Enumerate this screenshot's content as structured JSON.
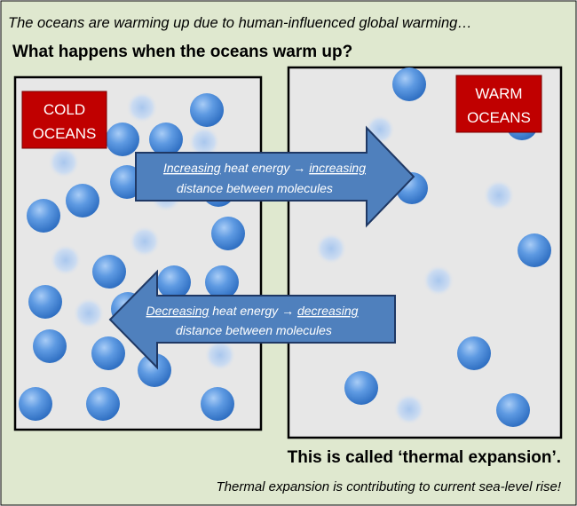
{
  "header": {
    "intro": "The oceans are warming up due to human-influenced global warming…",
    "question": "What happens when the oceans warm up?"
  },
  "cold_panel": {
    "label_line1": "COLD",
    "label_line2": "OCEANS"
  },
  "warm_panel": {
    "label_line1": "WARM",
    "label_line2": "OCEANS"
  },
  "arrow_right": {
    "word1": "Increasing",
    "mid1": " heat energy → ",
    "word2": "increasing",
    "line2": "distance between molecules"
  },
  "arrow_left": {
    "word1": "Decreasing",
    "mid1": " heat energy → ",
    "word2": "decreasing",
    "line2": "distance between molecules"
  },
  "footer": {
    "conclusion": "This is called ‘thermal expansion’.",
    "note": "Thermal expansion is contributing  to current sea-level rise!"
  },
  "colors": {
    "background": "#dfe8cf",
    "panel": "#e7e7e7",
    "molecule": "#4f8fde",
    "label_box": "#c00000",
    "arrow": "#4f80bd",
    "arrow_border": "#1f3864"
  }
}
